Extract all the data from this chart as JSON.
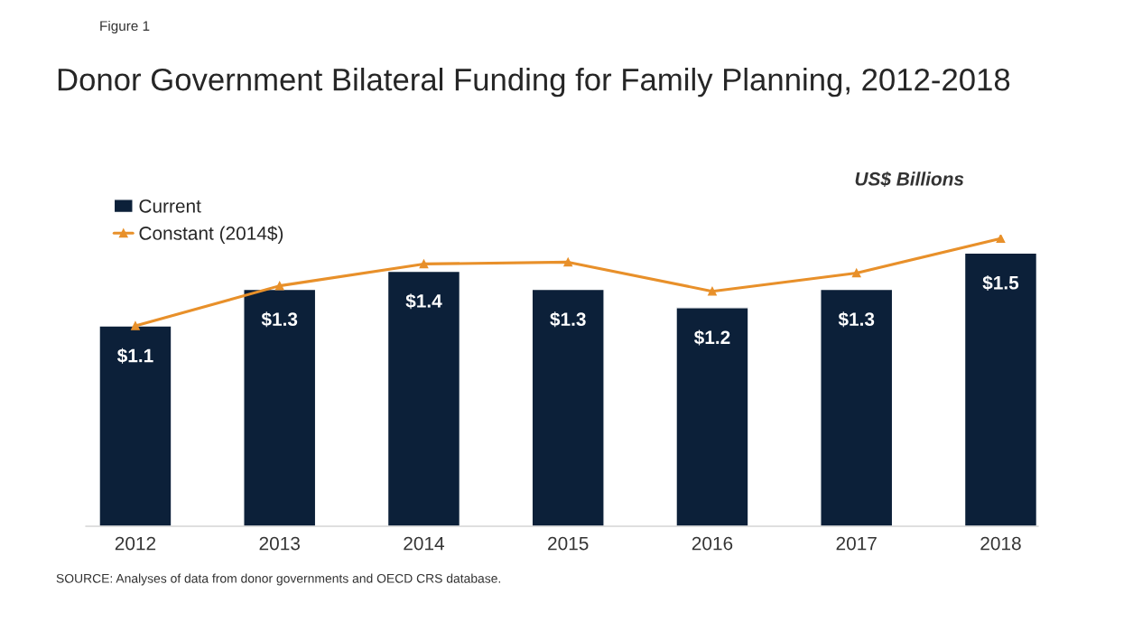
{
  "chart_data": {
    "type": "bar",
    "title": "Donor Government Bilateral Funding for Family Planning, 2012-2018",
    "categories": [
      "2012",
      "2013",
      "2014",
      "2015",
      "2016",
      "2017",
      "2018"
    ],
    "series": [
      {
        "name": "Current",
        "color": "#0c2039",
        "values": [
          1.1,
          1.3,
          1.4,
          1.3,
          1.2,
          1.3,
          1.5
        ],
        "value_labels": [
          "$1.1",
          "$1.3",
          "$1.4",
          "$1.3",
          "$1.2",
          "$1.3",
          "$1.5"
        ]
      },
      {
        "name": "Constant (2014$)",
        "type": "line",
        "color": "#e8902a",
        "marker": "triangle",
        "values": [
          1.1,
          1.32,
          1.44,
          1.45,
          1.29,
          1.39,
          1.58
        ]
      }
    ],
    "tick_labels": "x",
    "grid": false,
    "legend": "top left",
    "annotations": [
      "Figure 1",
      "US$ Billions",
      "SOURCE: Analyses of data from donor governments and OECD CRS database."
    ]
  }
}
